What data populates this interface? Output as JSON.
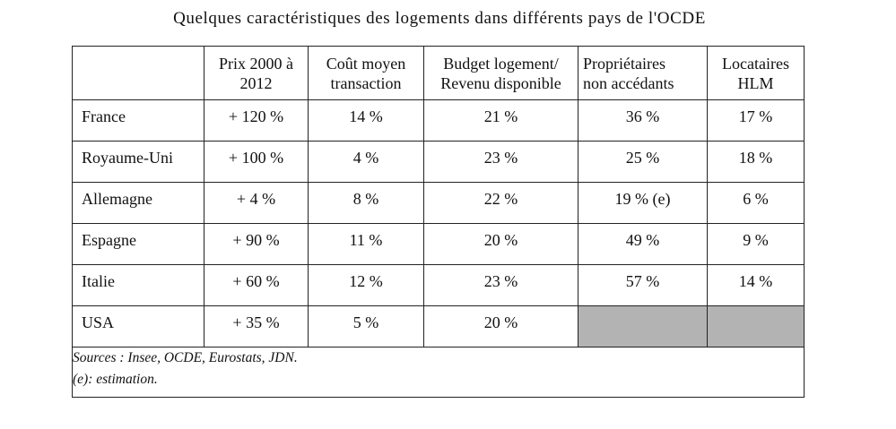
{
  "title": "Quelques caractéristiques des logements dans différents pays de l'OCDE",
  "table": {
    "headers": [
      "",
      "Prix 2000 à\n2012",
      "Coût moyen\ntransaction",
      "Budget logement/\nRevenu disponible",
      "Propriétaires\nnon accédants",
      "Locataires\nHLM"
    ],
    "rows": [
      {
        "country": "France",
        "prix": "+ 120 %",
        "cout": "14 %",
        "budget": "21 %",
        "proprietaires": "36 %",
        "locataires": "17 %"
      },
      {
        "country": "Royaume-Uni",
        "prix": "+ 100 %",
        "cout": "4 %",
        "budget": "23 %",
        "proprietaires": "25 %",
        "locataires": "18 %"
      },
      {
        "country": "Allemagne",
        "prix": "+ 4 %",
        "cout": "8 %",
        "budget": "22 %",
        "proprietaires": "19 % (e)",
        "locataires": "6 %"
      },
      {
        "country": "Espagne",
        "prix": "+ 90 %",
        "cout": "11 %",
        "budget": "20 %",
        "proprietaires": "49 %",
        "locataires": "9 %"
      },
      {
        "country": "Italie",
        "prix": "+ 60 %",
        "cout": "12 %",
        "budget": "23 %",
        "proprietaires": "57 %",
        "locataires": "14 %"
      },
      {
        "country": "USA",
        "prix": "+ 35 %",
        "cout": "5 %",
        "budget": "20 %",
        "proprietaires": "",
        "locataires": ""
      }
    ],
    "shaded_cell_color": "#b3b3b3"
  },
  "footnotes": {
    "sources": "Sources : Insee, OCDE, Eurostats, JDN.",
    "estimation": "(e): estimation."
  }
}
